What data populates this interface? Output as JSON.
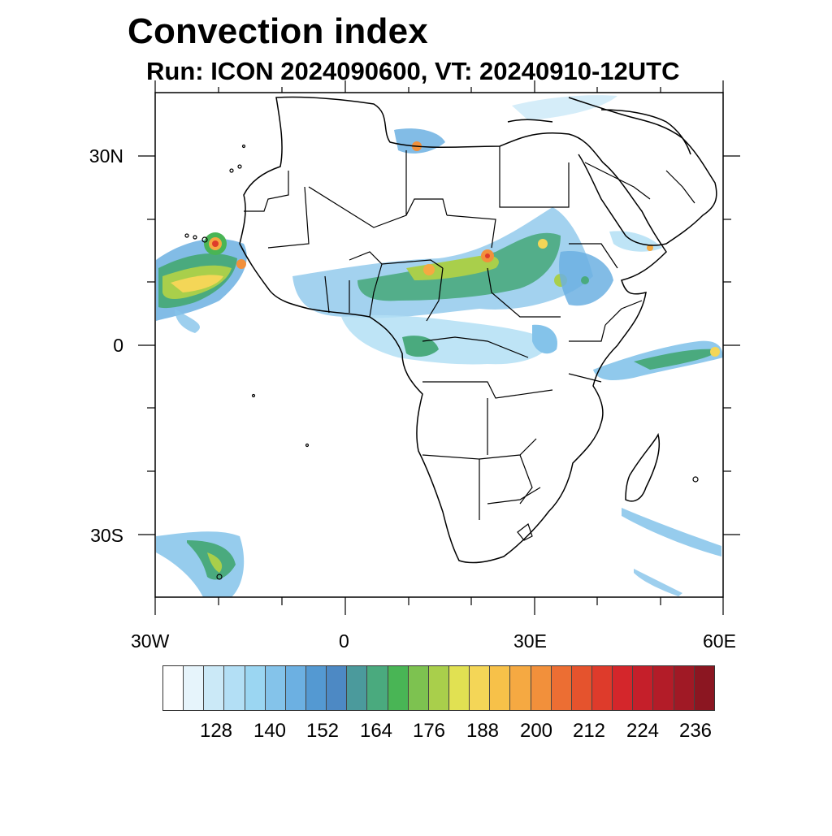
{
  "title": "Convection index",
  "subtitle": "Run: ICON 2024090600,  VT: 20240910-12UTC",
  "lat_labels": [
    "30N",
    "0",
    "30S"
  ],
  "lon_labels": [
    "30W",
    "0",
    "30E",
    "60E"
  ],
  "colorbar": {
    "colors": [
      "#ffffff",
      "#e6f4fb",
      "#cbe9f7",
      "#b3dff5",
      "#9bd6f2",
      "#84c3ea",
      "#6cb0e2",
      "#5499d2",
      "#4d89c4",
      "#4b9a9c",
      "#4aaa7e",
      "#49b555",
      "#7dc250",
      "#a9cf4b",
      "#e1e152",
      "#f4d657",
      "#f7c149",
      "#f5a942",
      "#f2903b",
      "#ec6e33",
      "#e5532d",
      "#de3b2b",
      "#d4262b",
      "#c51f2a",
      "#b31c28",
      "#a01925",
      "#8b1621"
    ],
    "tick_labels": [
      "128",
      "140",
      "152",
      "164",
      "176",
      "188",
      "200",
      "212",
      "224",
      "236"
    ]
  }
}
